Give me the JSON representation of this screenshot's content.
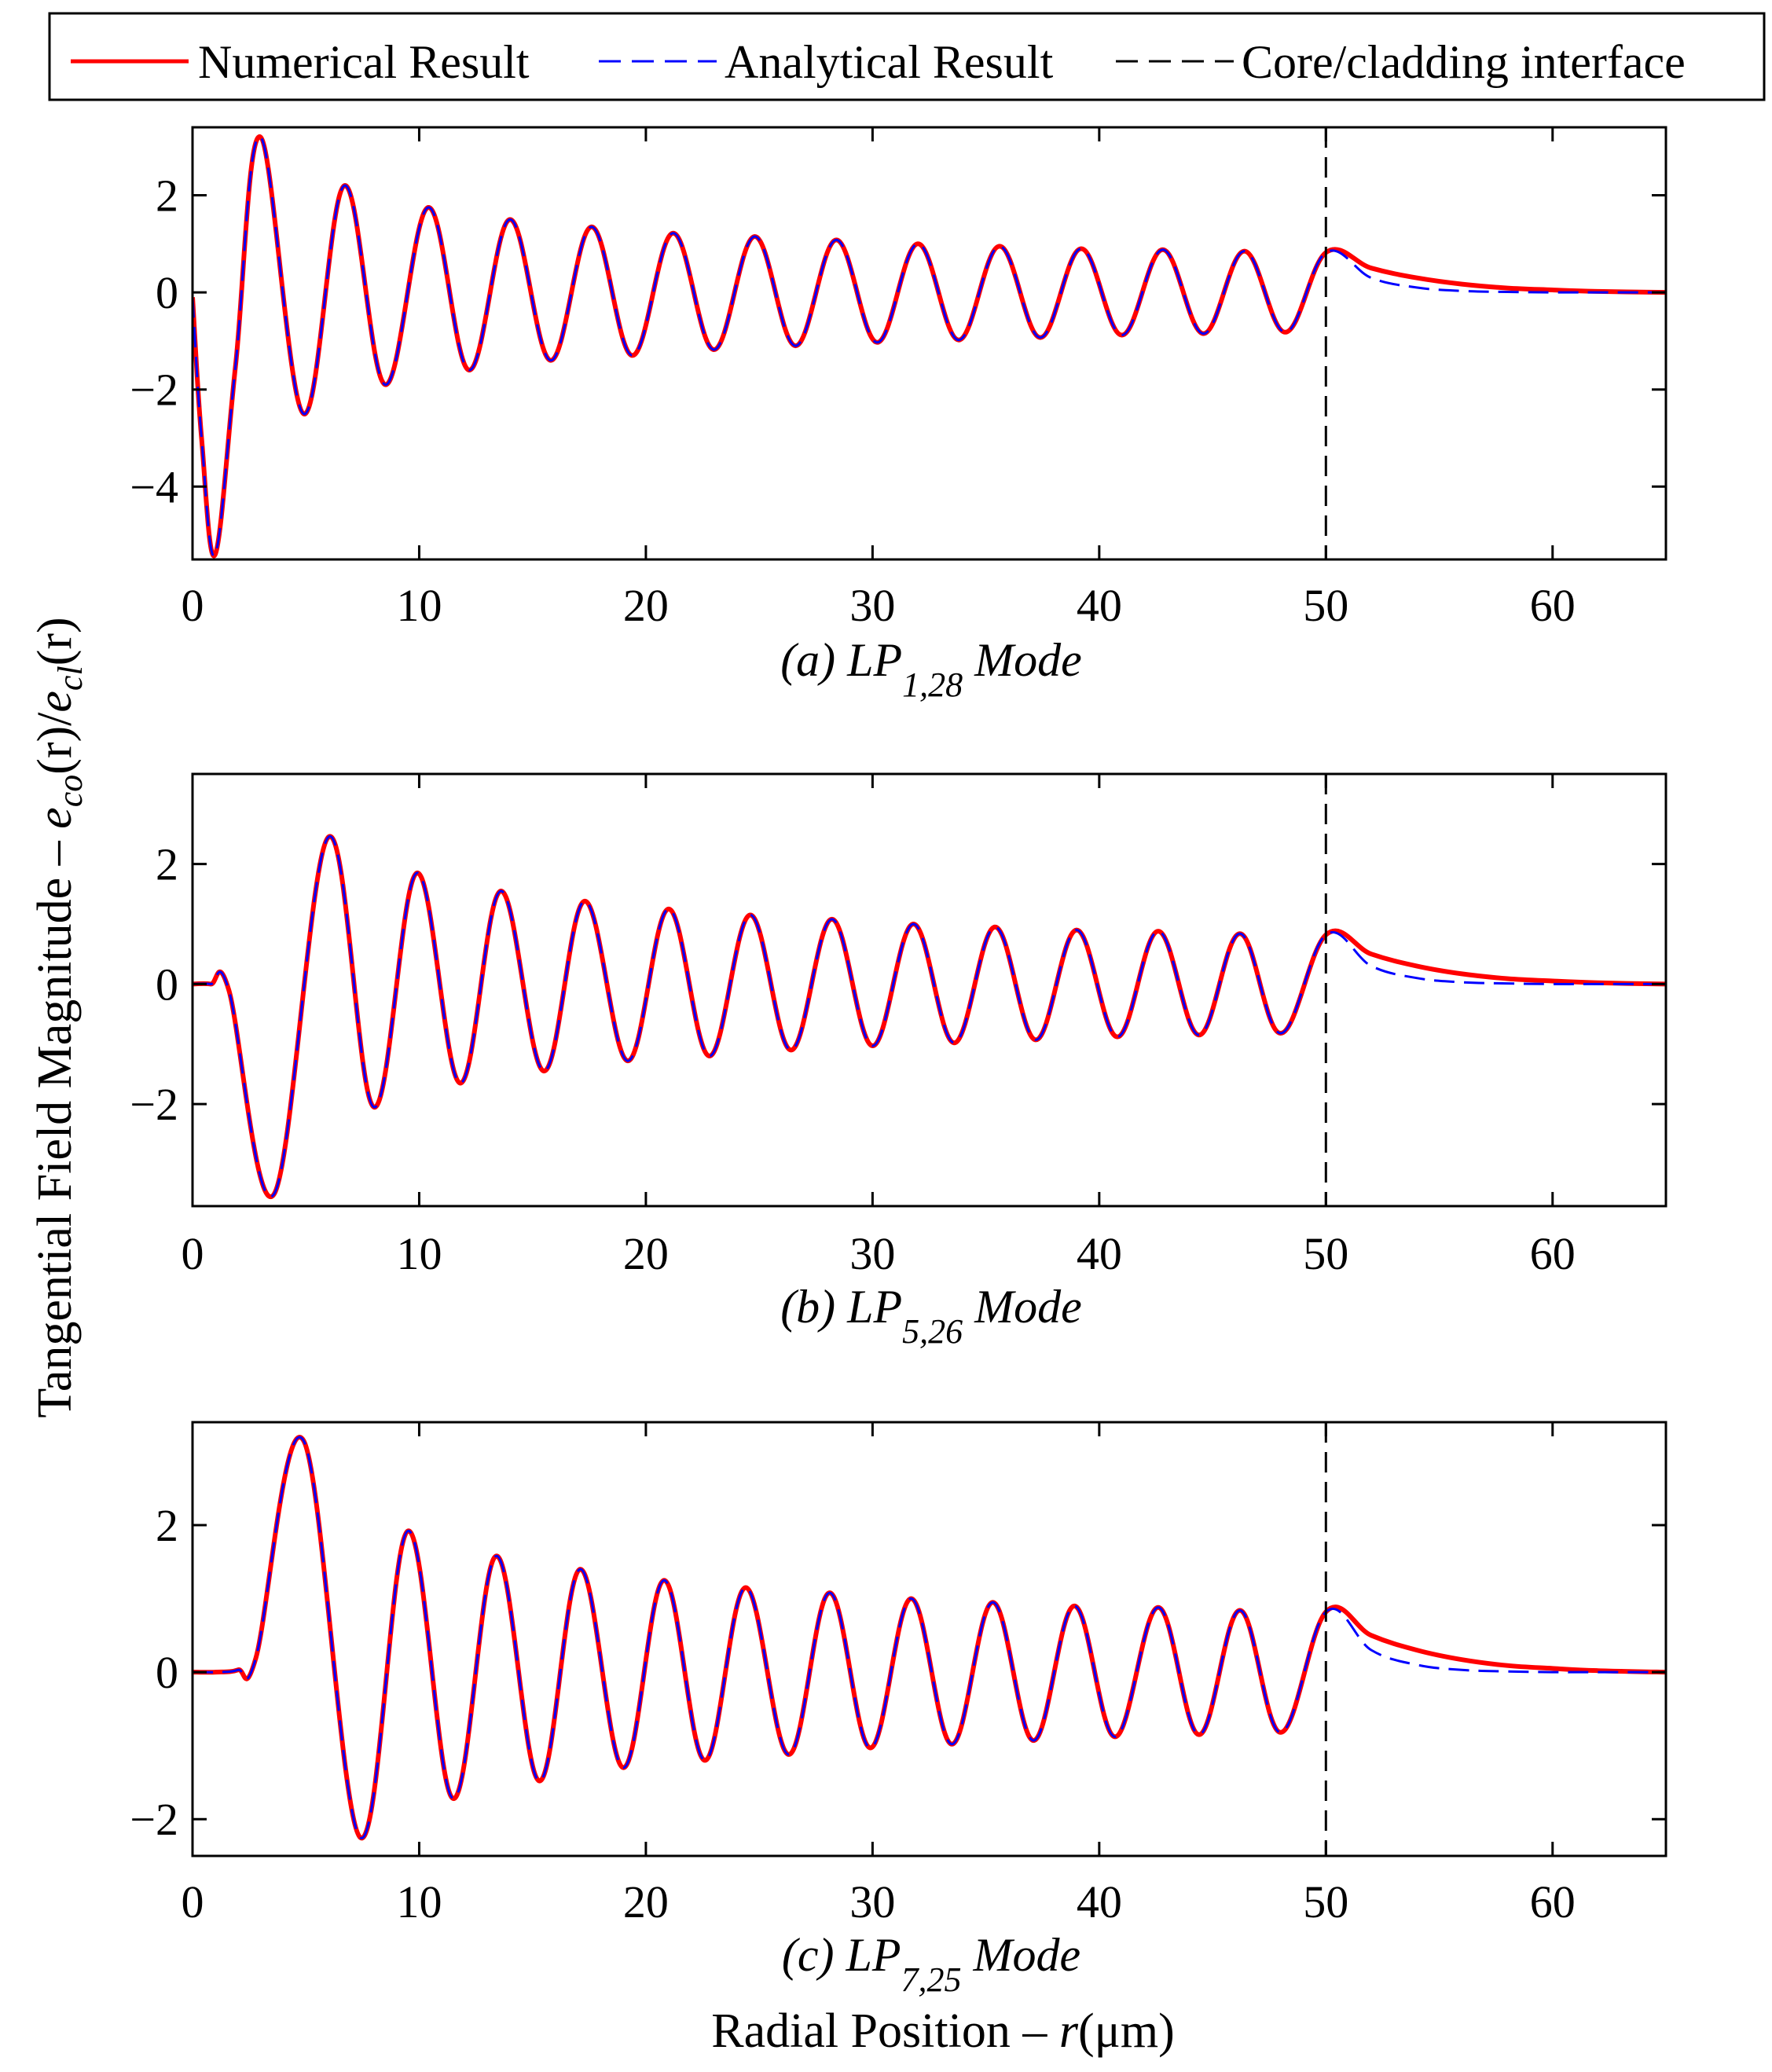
{
  "figure": {
    "ylabel": {
      "prefix": "Tangential Field Magnitude – ",
      "e1": "e",
      "sub1": "co",
      "mid": "(r)/",
      "e2": "e",
      "sub2": "cl",
      "end": "(r)"
    },
    "xlabel": {
      "prefix": "Radial Position – ",
      "var": "r",
      "unit": "(μm)"
    },
    "legend": [
      {
        "label": "Numerical Result",
        "color": "#ff0000",
        "style": "solid"
      },
      {
        "label": "Analytical Result",
        "color": "#0000ff",
        "style": "dashed"
      },
      {
        "label": "Core/cladding interface",
        "color": "#000000",
        "style": "dashed"
      }
    ]
  },
  "chart_data": [
    {
      "type": "line",
      "caption": {
        "prefix": "(a) LP",
        "sub": "1,28",
        "suffix": " Mode"
      },
      "xlim": [
        0,
        65
      ],
      "ylim": [
        -5.5,
        3.4
      ],
      "xticks": [
        0,
        10,
        20,
        30,
        40,
        50,
        60
      ],
      "yticks": [
        2,
        0,
        -2,
        -4
      ],
      "ytick_labels": [
        "2",
        "0",
        "−2",
        "−4"
      ],
      "interface_x": 50,
      "series": [
        {
          "name": "Numerical Result",
          "color": "#ff0000",
          "x": [
            0,
            0.4,
            1.0,
            1.9,
            3.0,
            4.9,
            6.7,
            8.5,
            10.4,
            12.2,
            14.0,
            15.8,
            17.6,
            19.4,
            21.2,
            23.0,
            24.8,
            26.6,
            28.4,
            30.2,
            32.0,
            33.8,
            35.6,
            37.4,
            39.2,
            41.0,
            42.8,
            44.6,
            46.4,
            48.2,
            50.0,
            52,
            54,
            56,
            58,
            60,
            62,
            65
          ],
          "y": [
            -0.1,
            -3.0,
            -5.4,
            -1.5,
            3.2,
            -2.5,
            2.2,
            -1.9,
            1.75,
            -1.6,
            1.5,
            -1.4,
            1.35,
            -1.3,
            1.22,
            -1.18,
            1.15,
            -1.1,
            1.08,
            -1.03,
            1.0,
            -0.98,
            0.95,
            -0.93,
            0.9,
            -0.88,
            0.88,
            -0.85,
            0.85,
            -0.82,
            0.82,
            0.5,
            0.3,
            0.17,
            0.09,
            0.05,
            0.02,
            0.0
          ]
        },
        {
          "name": "Analytical Result",
          "color": "#0000ff",
          "x": [
            0,
            0.4,
            1.0,
            1.9,
            3.0,
            4.9,
            6.7,
            8.5,
            10.4,
            12.2,
            14.0,
            15.8,
            17.6,
            19.4,
            21.2,
            23.0,
            24.8,
            26.6,
            28.4,
            30.2,
            32.0,
            33.8,
            35.6,
            37.4,
            39.2,
            41.0,
            42.8,
            44.6,
            46.4,
            48.2,
            50.0,
            52,
            54,
            56,
            58,
            60,
            62,
            65
          ],
          "y": [
            -0.1,
            -3.0,
            -5.4,
            -1.5,
            3.2,
            -2.5,
            2.2,
            -1.9,
            1.75,
            -1.6,
            1.5,
            -1.4,
            1.35,
            -1.3,
            1.22,
            -1.18,
            1.15,
            -1.1,
            1.08,
            -1.03,
            1.0,
            -0.98,
            0.95,
            -0.93,
            0.9,
            -0.88,
            0.88,
            -0.85,
            0.85,
            -0.82,
            0.82,
            0.3,
            0.1,
            0.03,
            0.01,
            0.0,
            0.0,
            0.0
          ]
        }
      ]
    },
    {
      "type": "line",
      "caption": {
        "prefix": "(b) LP",
        "sub": "5,26",
        "suffix": " Mode"
      },
      "xlim": [
        0,
        65
      ],
      "ylim": [
        -3.7,
        3.5
      ],
      "xticks": [
        0,
        10,
        20,
        30,
        40,
        50,
        60
      ],
      "yticks": [
        2,
        0,
        -2
      ],
      "ytick_labels": [
        "2",
        "0",
        "−2"
      ],
      "interface_x": 50,
      "series": [
        {
          "name": "Numerical Result",
          "color": "#ff0000",
          "x": [
            0,
            0.8,
            1.6,
            3.6,
            6.0,
            8.0,
            9.9,
            11.8,
            13.6,
            15.5,
            17.3,
            19.2,
            21.0,
            22.8,
            24.6,
            26.4,
            28.2,
            30.0,
            31.8,
            33.6,
            35.4,
            37.2,
            39.0,
            40.8,
            42.6,
            44.4,
            46.2,
            48.0,
            50.0,
            52,
            54,
            56,
            58,
            60,
            62,
            65
          ],
          "y": [
            0,
            0,
            -0.1,
            -3.5,
            2.45,
            -2.05,
            1.85,
            -1.65,
            1.55,
            -1.45,
            1.38,
            -1.28,
            1.25,
            -1.2,
            1.15,
            -1.1,
            1.08,
            -1.03,
            1.0,
            -0.98,
            0.95,
            -0.93,
            0.9,
            -0.88,
            0.88,
            -0.85,
            0.84,
            -0.82,
            0.82,
            0.5,
            0.3,
            0.17,
            0.09,
            0.05,
            0.02,
            0.0
          ]
        },
        {
          "name": "Analytical Result",
          "color": "#0000ff",
          "x": [
            0,
            0.8,
            1.6,
            3.6,
            6.0,
            8.0,
            9.9,
            11.8,
            13.6,
            15.5,
            17.3,
            19.2,
            21.0,
            22.8,
            24.6,
            26.4,
            28.2,
            30.0,
            31.8,
            33.6,
            35.4,
            37.2,
            39.0,
            40.8,
            42.6,
            44.4,
            46.2,
            48.0,
            50.0,
            52,
            54,
            56,
            58,
            60,
            62,
            65
          ],
          "y": [
            0,
            0,
            -0.1,
            -3.5,
            2.45,
            -2.05,
            1.85,
            -1.65,
            1.55,
            -1.45,
            1.38,
            -1.28,
            1.25,
            -1.2,
            1.15,
            -1.1,
            1.08,
            -1.03,
            1.0,
            -0.98,
            0.95,
            -0.93,
            0.9,
            -0.88,
            0.88,
            -0.85,
            0.84,
            -0.82,
            0.82,
            0.3,
            0.1,
            0.03,
            0.01,
            0.0,
            0.0,
            0.0
          ]
        }
      ]
    },
    {
      "type": "line",
      "caption": {
        "prefix": "(c) LP",
        "sub": "7,25",
        "suffix": " Mode"
      },
      "xlim": [
        0,
        65
      ],
      "ylim": [
        -2.5,
        3.4
      ],
      "xticks": [
        0,
        10,
        20,
        30,
        40,
        50,
        60
      ],
      "yticks": [
        2,
        0,
        -2
      ],
      "ytick_labels": [
        "2",
        "0",
        "−2"
      ],
      "interface_x": 50,
      "series": [
        {
          "name": "Numerical Result",
          "color": "#ff0000",
          "x": [
            0,
            1.0,
            2.0,
            2.8,
            4.9,
            7.4,
            9.5,
            11.5,
            13.4,
            15.3,
            17.1,
            19.0,
            20.8,
            22.6,
            24.4,
            26.3,
            28.1,
            29.9,
            31.7,
            33.5,
            35.3,
            37.1,
            38.9,
            40.7,
            42.6,
            44.4,
            46.2,
            48.0,
            50.0,
            52,
            54,
            56,
            58,
            60,
            62,
            65
          ],
          "y": [
            0,
            0,
            0.03,
            0.2,
            3.15,
            -2.25,
            1.92,
            -1.72,
            1.58,
            -1.48,
            1.4,
            -1.3,
            1.25,
            -1.2,
            1.15,
            -1.12,
            1.08,
            -1.03,
            1.0,
            -0.98,
            0.95,
            -0.93,
            0.9,
            -0.88,
            0.88,
            -0.85,
            0.84,
            -0.82,
            0.82,
            0.5,
            0.3,
            0.17,
            0.09,
            0.05,
            0.02,
            0.0
          ]
        },
        {
          "name": "Analytical Result",
          "color": "#0000ff",
          "x": [
            0,
            1.0,
            2.0,
            2.8,
            4.9,
            7.4,
            9.5,
            11.5,
            13.4,
            15.3,
            17.1,
            19.0,
            20.8,
            22.6,
            24.4,
            26.3,
            28.1,
            29.9,
            31.7,
            33.5,
            35.3,
            37.1,
            38.9,
            40.7,
            42.6,
            44.4,
            46.2,
            48.0,
            50.0,
            52,
            54,
            56,
            58,
            60,
            62,
            65
          ],
          "y": [
            0,
            0,
            0.03,
            0.2,
            3.15,
            -2.25,
            1.92,
            -1.72,
            1.58,
            -1.48,
            1.4,
            -1.3,
            1.25,
            -1.2,
            1.15,
            -1.12,
            1.08,
            -1.03,
            1.0,
            -0.98,
            0.95,
            -0.93,
            0.9,
            -0.88,
            0.88,
            -0.85,
            0.84,
            -0.82,
            0.82,
            0.3,
            0.1,
            0.03,
            0.01,
            0.0,
            0.0,
            0.0
          ]
        }
      ]
    }
  ]
}
